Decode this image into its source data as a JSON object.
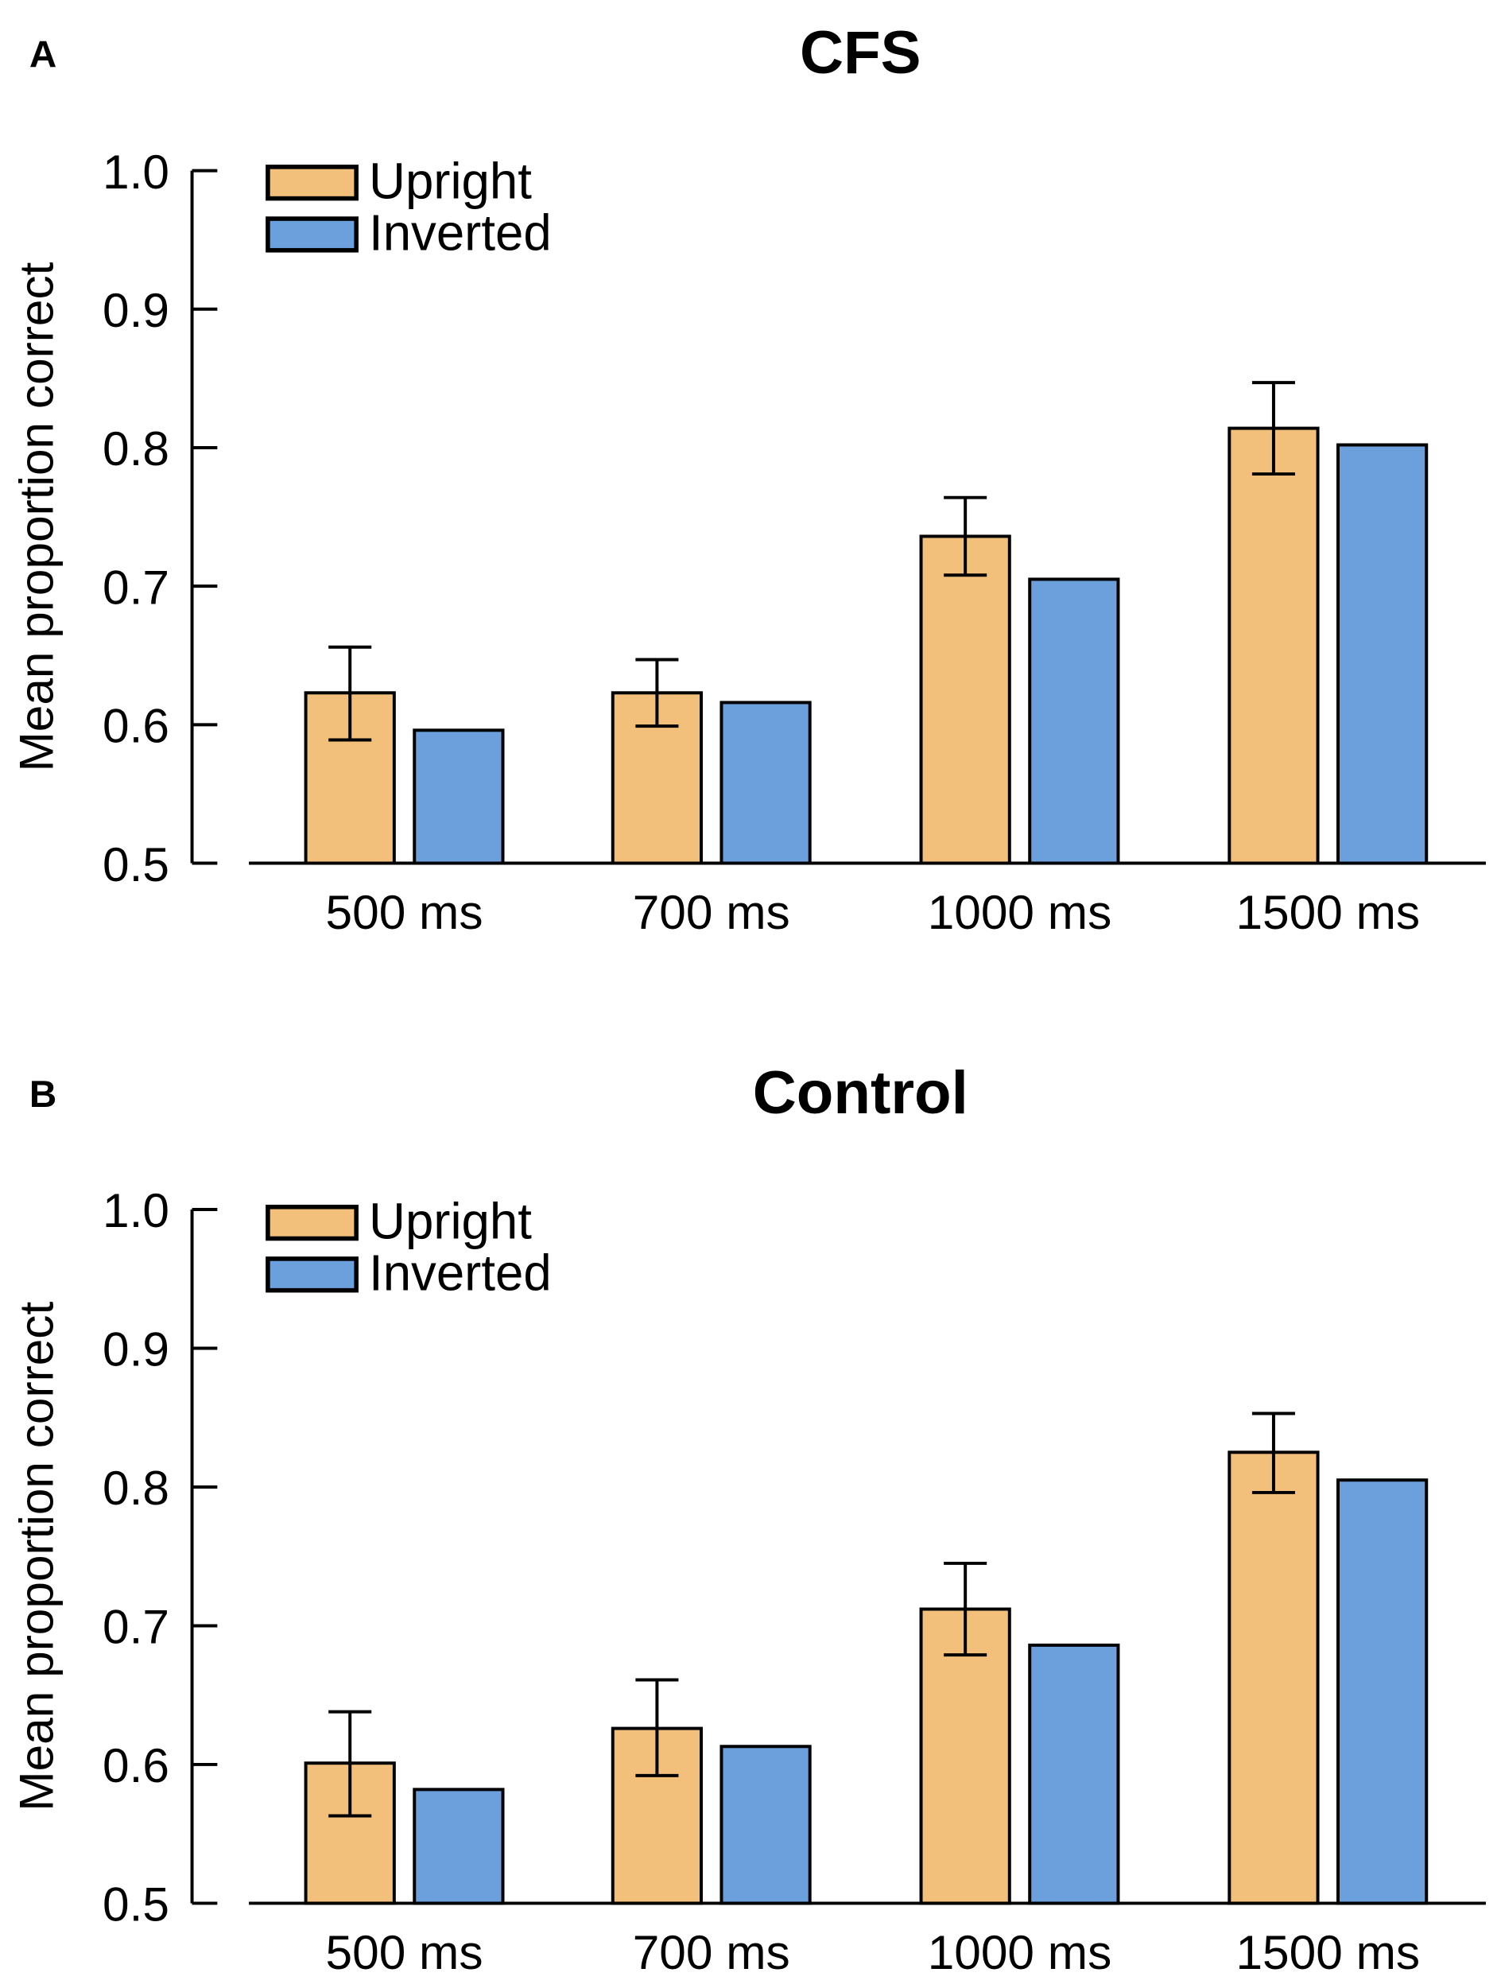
{
  "colors": {
    "upright": "#F2C07A",
    "inverted": "#6CA0DC",
    "stroke": "#000000"
  },
  "chart_data": [
    {
      "type": "bar",
      "panel_label": "A",
      "title": "CFS",
      "xlabel": "",
      "ylabel": "Mean proportion correct",
      "ylim": [
        0.5,
        1.0
      ],
      "yticks": [
        "0.5",
        "0.6",
        "0.7",
        "0.8",
        "0.9",
        "1.0"
      ],
      "categories": [
        "500 ms",
        "700 ms",
        "1000 ms",
        "1500 ms"
      ],
      "legend": {
        "placement": "top-left",
        "entries": [
          "Upright",
          "Inverted"
        ]
      },
      "series": [
        {
          "name": "Upright",
          "values": [
            0.623,
            0.623,
            0.736,
            0.814
          ],
          "error_low": [
            0.589,
            0.599,
            0.708,
            0.781
          ],
          "error_high": [
            0.656,
            0.647,
            0.764,
            0.847
          ]
        },
        {
          "name": "Inverted",
          "values": [
            0.596,
            0.616,
            0.705,
            0.802
          ]
        }
      ]
    },
    {
      "type": "bar",
      "panel_label": "B",
      "title": "Control",
      "xlabel": "",
      "ylabel": "Mean proportion correct",
      "ylim": [
        0.5,
        1.0
      ],
      "yticks": [
        "0.5",
        "0.6",
        "0.7",
        "0.8",
        "0.9",
        "1.0"
      ],
      "categories": [
        "500 ms",
        "700 ms",
        "1000 ms",
        "1500 ms"
      ],
      "legend": {
        "placement": "top-left",
        "entries": [
          "Upright",
          "Inverted"
        ]
      },
      "series": [
        {
          "name": "Upright",
          "values": [
            0.601,
            0.626,
            0.712,
            0.825
          ],
          "error_low": [
            0.563,
            0.592,
            0.679,
            0.796
          ],
          "error_high": [
            0.638,
            0.661,
            0.745,
            0.853
          ]
        },
        {
          "name": "Inverted",
          "values": [
            0.582,
            0.613,
            0.686,
            0.805
          ]
        }
      ]
    }
  ]
}
